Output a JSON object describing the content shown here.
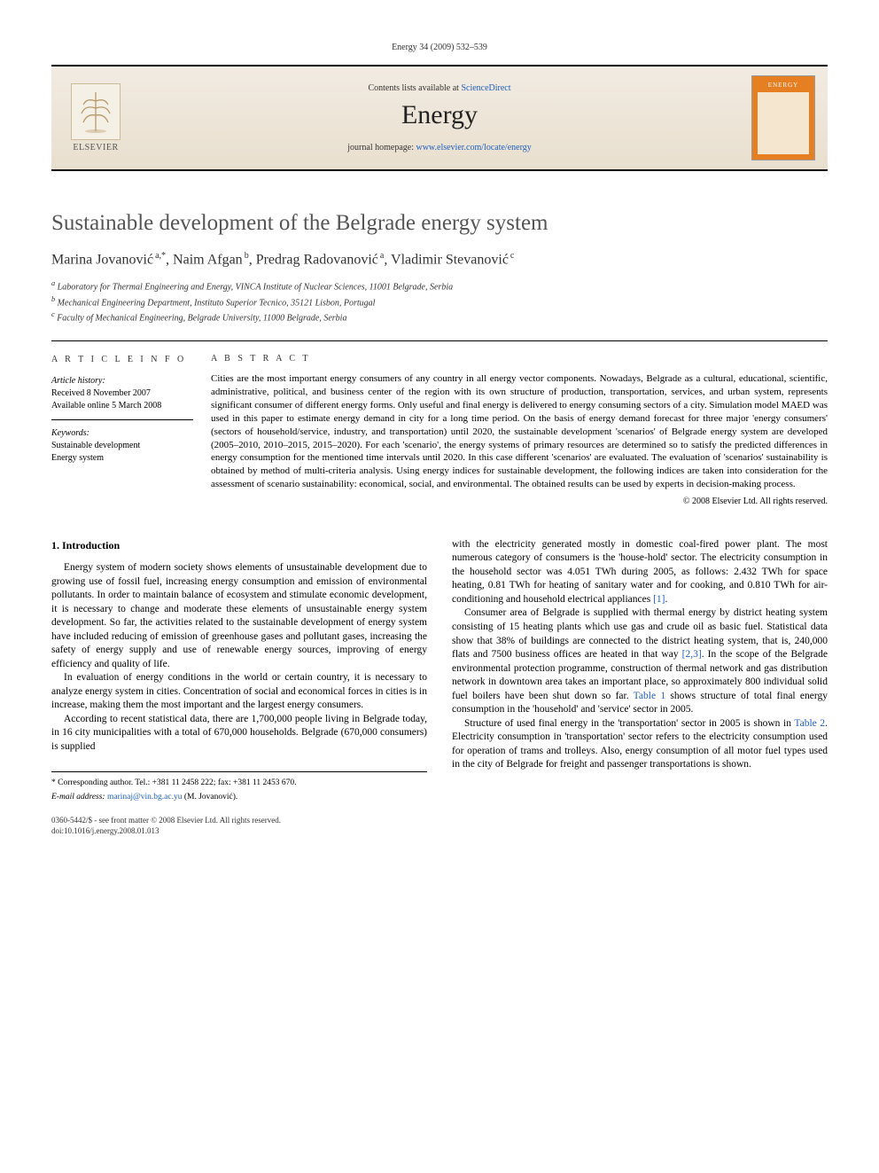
{
  "journal_ref": "Energy 34 (2009) 532–539",
  "topbar": {
    "contents_prefix": "Contents lists available at ",
    "contents_link": "ScienceDirect",
    "journal": "Energy",
    "homepage_prefix": "journal homepage: ",
    "homepage_link": "www.elsevier.com/locate/energy",
    "elsevier_label": "ELSEVIER",
    "cover_label": "ENERGY"
  },
  "title": "Sustainable development of the Belgrade energy system",
  "authors_html": "Marina Jovanović",
  "authors": [
    {
      "name": "Marina Jovanović",
      "sup": "a,*"
    },
    {
      "name": "Naim Afgan",
      "sup": "b"
    },
    {
      "name": "Predrag Radovanović",
      "sup": "a"
    },
    {
      "name": "Vladimir Stevanović",
      "sup": "c"
    }
  ],
  "affiliations": {
    "a": "Laboratory for Thermal Engineering and Energy, VINCA Institute of Nuclear Sciences, 11001 Belgrade, Serbia",
    "b": "Mechanical Engineering Department, Instituto Superior Tecnico, 35121 Lisbon, Portugal",
    "c": "Faculty of Mechanical Engineering, Belgrade University, 11000 Belgrade, Serbia"
  },
  "article_info": {
    "label": "A R T I C L E   I N F O",
    "history_head": "Article history:",
    "received": "Received 8 November 2007",
    "online": "Available online 5 March 2008",
    "keywords_head": "Keywords:",
    "keywords": [
      "Sustainable development",
      "Energy system"
    ]
  },
  "abstract": {
    "label": "A B S T R A C T",
    "text": "Cities are the most important energy consumers of any country in all energy vector components. Nowadays, Belgrade as a cultural, educational, scientific, administrative, political, and business center of the region with its own structure of production, transportation, services, and urban system, represents significant consumer of different energy forms. Only useful and final energy is delivered to energy consuming sectors of a city. Simulation model MAED was used in this paper to estimate energy demand in city for a long time period. On the basis of energy demand forecast for three major 'energy consumers' (sectors of household/service, industry, and transportation) until 2020, the sustainable development 'scenarios' of Belgrade energy system are developed (2005–2010, 2010–2015, 2015–2020). For each 'scenario', the energy systems of primary resources are determined so to satisfy the predicted differences in energy consumption for the mentioned time intervals until 2020. In this case different 'scenarios' are evaluated. The evaluation of 'scenarios' sustainability is obtained by method of multi-criteria analysis. Using energy indices for sustainable development, the following indices are taken into consideration for the assessment of scenario sustainability: economical, social, and environmental. The obtained results can be used by experts in decision-making process.",
    "copyright": "© 2008 Elsevier Ltd. All rights reserved."
  },
  "body": {
    "section1_head": "1.  Introduction",
    "left": [
      "Energy system of modern society shows elements of unsustainable development due to growing use of fossil fuel, increasing energy consumption and emission of environmental pollutants. In order to maintain balance of ecosystem and stimulate economic development, it is necessary to change and moderate these elements of unsustainable energy system development. So far, the activities related to the sustainable development of energy system have included reducing of emission of greenhouse gases and pollutant gases, increasing the safety of energy supply and use of renewable energy sources, improving of energy efficiency and quality of life.",
      "In evaluation of energy conditions in the world or certain country, it is necessary to analyze energy system in cities. Concentration of social and economical forces in cities is in increase, making them the most important and the largest energy consumers.",
      "According to recent statistical data, there are 1,700,000 people living in Belgrade today, in 16 city municipalities with a total of 670,000 households. Belgrade (670,000 consumers) is supplied"
    ],
    "right_first_frag": "with the electricity generated mostly in domestic coal-fired power plant. The most numerous category of consumers is the 'house-hold' sector. The electricity consumption in the household sector was 4.051 TWh during 2005, as follows: 2.432 TWh for space heating, 0.81 TWh for heating of sanitary water and for cooking, and 0.810 TWh for air-conditioning and household electrical appliances ",
    "right_ref1": "[1]",
    "right_p2_a": "Consumer area of Belgrade is supplied with thermal energy by district heating system consisting of 15 heating plants which use gas and crude oil as basic fuel. Statistical data show that 38% of buildings are connected to the district heating system, that is, 240,000 flats and 7500 business offices are heated in that way ",
    "right_ref23": "[2,3]",
    "right_p2_b": ". In the scope of the Belgrade environmental protection programme, construction of thermal network and gas distribution network in downtown area takes an important place, so approximately 800 individual solid fuel boilers have been shut down so far. ",
    "right_table1": "Table 1",
    "right_p2_c": " shows structure of total final energy consumption in the 'household' and 'service' sector in 2005.",
    "right_p3_a": "Structure of used final energy in the 'transportation' sector in 2005 is shown in ",
    "right_table2": "Table 2",
    "right_p3_b": ". Electricity consumption in 'transportation' sector refers to the electricity consumption used for operation of trams and trolleys. Also, energy consumption of all motor fuel types used in the city of Belgrade for freight and passenger transportations is shown."
  },
  "footer": {
    "corresp_label": "* Corresponding author. Tel.: +381 11 2458 222; fax: +381 11 2453 670.",
    "email_label": "E-mail address: ",
    "email": "marinaj@vin.bg.ac.yu",
    "email_suffix": " (M. Jovanović).",
    "front_matter": "0360-5442/$ - see front matter © 2008 Elsevier Ltd. All rights reserved.",
    "doi": "doi:10.1016/j.energy.2008.01.013"
  },
  "colors": {
    "link": "#2060c0",
    "topbar_bg_top": "#f2ebe2",
    "topbar_bg_bot": "#e8dfce",
    "cover_orange": "#e67e22",
    "title_gray": "#555555"
  }
}
